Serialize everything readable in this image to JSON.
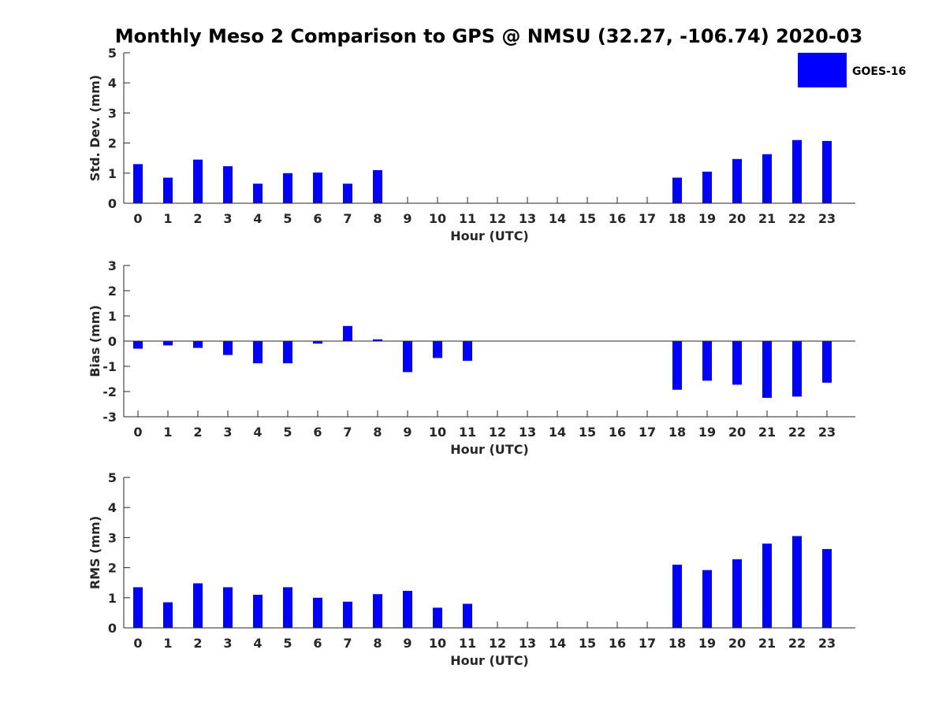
{
  "title": "Monthly Meso 2 Comparison to GPS @ NMSU (32.27, -106.74) 2020-03",
  "legend": {
    "label": "GOES-16",
    "color": "#0000ff"
  },
  "chart_data": [
    {
      "type": "bar",
      "name": "stddev",
      "ylabel": "Std. Dev. (mm)",
      "xlabel": "Hour (UTC)",
      "ylim": [
        0,
        5
      ],
      "yticks": [
        "0",
        "1",
        "2",
        "3",
        "4",
        "5"
      ],
      "categories": [
        "0",
        "1",
        "2",
        "3",
        "4",
        "5",
        "6",
        "7",
        "8",
        "9",
        "10",
        "11",
        "12",
        "13",
        "14",
        "15",
        "16",
        "17",
        "18",
        "19",
        "20",
        "21",
        "22",
        "23"
      ],
      "values": [
        1.3,
        0.85,
        1.45,
        1.23,
        0.65,
        1.0,
        1.02,
        0.65,
        1.1,
        null,
        null,
        null,
        null,
        null,
        null,
        null,
        null,
        null,
        0.85,
        1.05,
        1.47,
        1.63,
        2.1,
        2.07
      ]
    },
    {
      "type": "bar",
      "name": "bias",
      "ylabel": "Bias (mm)",
      "xlabel": "Hour (UTC)",
      "ylim": [
        -3,
        3
      ],
      "yticks": [
        "-3",
        "-2",
        "-1",
        "0",
        "1",
        "2",
        "3"
      ],
      "categories": [
        "0",
        "1",
        "2",
        "3",
        "4",
        "5",
        "6",
        "7",
        "8",
        "9",
        "10",
        "11",
        "12",
        "13",
        "14",
        "15",
        "16",
        "17",
        "18",
        "19",
        "20",
        "21",
        "22",
        "23"
      ],
      "values": [
        -0.3,
        -0.17,
        -0.27,
        -0.55,
        -0.88,
        -0.88,
        -0.1,
        0.6,
        0.07,
        -1.23,
        -0.67,
        -0.78,
        null,
        null,
        null,
        null,
        null,
        null,
        -1.93,
        -1.57,
        -1.73,
        -2.25,
        -2.2,
        -1.65
      ]
    },
    {
      "type": "bar",
      "name": "rms",
      "ylabel": "RMS (mm)",
      "xlabel": "Hour (UTC)",
      "ylim": [
        0,
        5
      ],
      "yticks": [
        "0",
        "1",
        "2",
        "3",
        "4",
        "5"
      ],
      "categories": [
        "0",
        "1",
        "2",
        "3",
        "4",
        "5",
        "6",
        "7",
        "8",
        "9",
        "10",
        "11",
        "12",
        "13",
        "14",
        "15",
        "16",
        "17",
        "18",
        "19",
        "20",
        "21",
        "22",
        "23"
      ],
      "values": [
        1.35,
        0.85,
        1.48,
        1.35,
        1.1,
        1.35,
        1.0,
        0.87,
        1.12,
        1.23,
        0.67,
        0.8,
        null,
        null,
        null,
        null,
        null,
        null,
        2.1,
        1.92,
        2.28,
        2.8,
        3.05,
        2.62
      ]
    }
  ]
}
